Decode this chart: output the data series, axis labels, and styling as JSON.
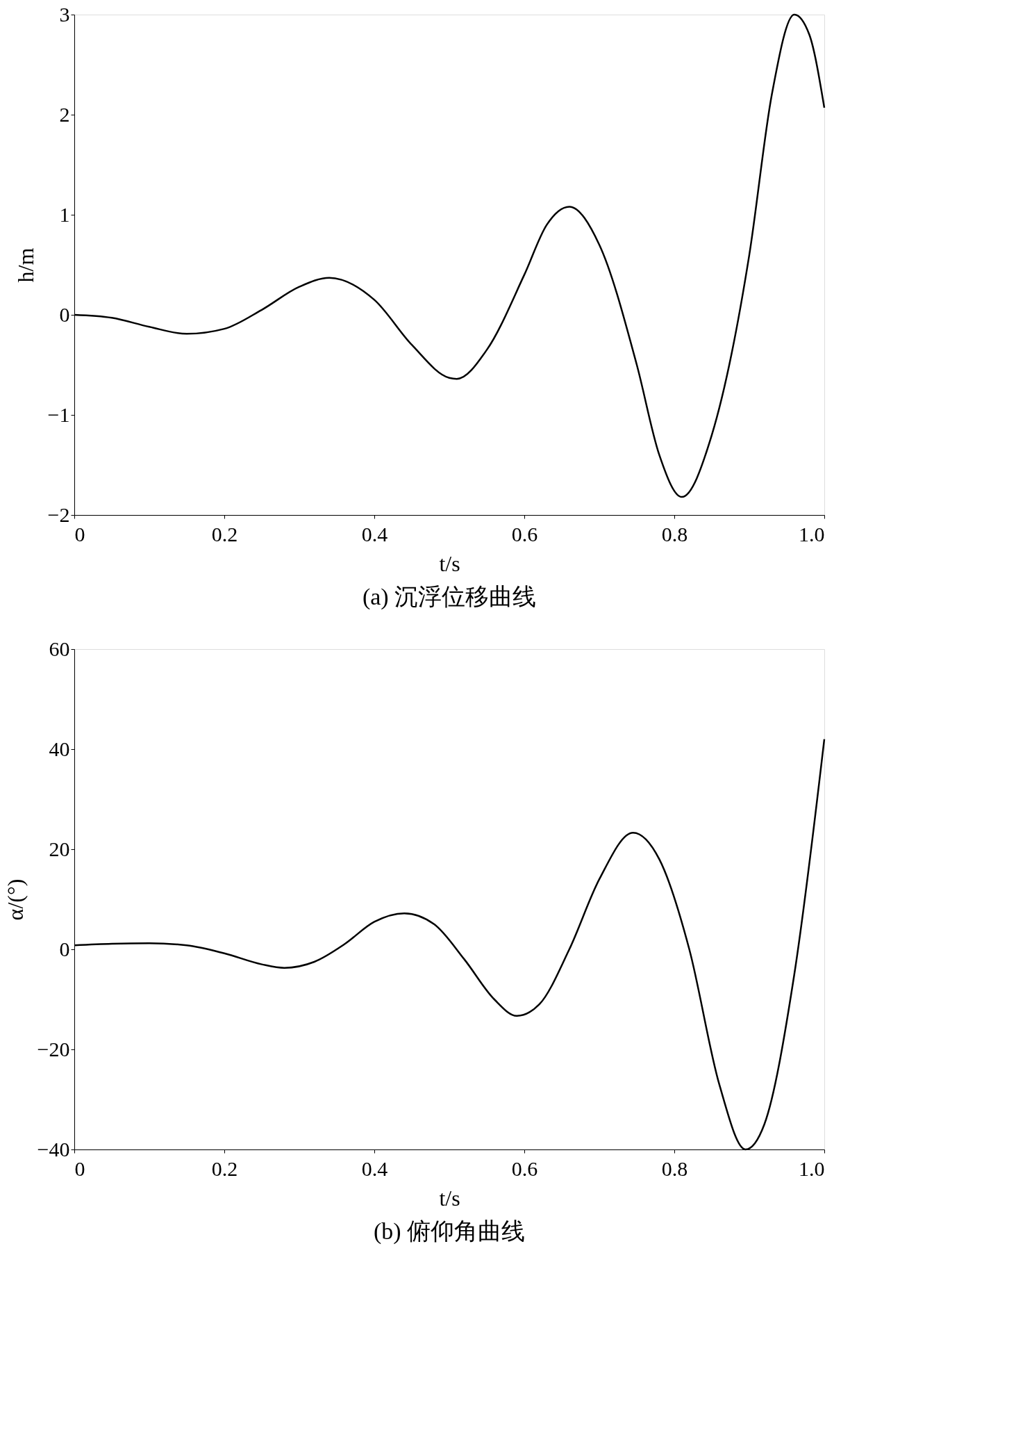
{
  "chart_data": [
    {
      "type": "line",
      "xlabel": "t/s",
      "ylabel": "h/m",
      "annotations": [
        "(a) 沉浮位移曲线"
      ],
      "xlim": [
        0,
        1.0
      ],
      "xticks": [
        0,
        0.2,
        0.4,
        0.6,
        0.8,
        {
          "value": 1.0,
          "label": "1.0"
        }
      ],
      "ylim": [
        -2,
        3
      ],
      "yticks": [
        -2,
        -1,
        0,
        1,
        2,
        3
      ],
      "grid": false,
      "series": [
        {
          "color": "#000000",
          "x": [
            0,
            0.05,
            0.1,
            0.15,
            0.2,
            0.25,
            0.3,
            0.34,
            0.4,
            0.45,
            0.5,
            0.51,
            0.55,
            0.6,
            0.63,
            0.66,
            0.7,
            0.75,
            0.78,
            0.81,
            0.85,
            0.9,
            0.93,
            0.96,
            0.98,
            1.0
          ],
          "values": [
            0,
            -0.03,
            -0.12,
            -0.19,
            -0.14,
            0.05,
            0.28,
            0.37,
            0.15,
            -0.3,
            -0.63,
            -0.64,
            -0.35,
            0.4,
            0.9,
            1.08,
            0.7,
            -0.5,
            -1.4,
            -1.82,
            -1.2,
            0.6,
            2.2,
            3.0,
            2.8,
            2.07
          ]
        }
      ]
    },
    {
      "type": "line",
      "xlabel": "t/s",
      "ylabel": "α/(°)",
      "annotations": [
        "(b) 俯仰角曲线"
      ],
      "xlim": [
        0,
        1.0
      ],
      "xticks": [
        0,
        0.2,
        0.4,
        0.6,
        0.8,
        {
          "value": 1.0,
          "label": "1.0"
        }
      ],
      "ylim": [
        -40,
        60
      ],
      "yticks": [
        -40,
        -20,
        0,
        20,
        40,
        60
      ],
      "grid": false,
      "series": [
        {
          "color": "#000000",
          "x": [
            0,
            0.05,
            0.1,
            0.15,
            0.2,
            0.25,
            0.28,
            0.32,
            0.36,
            0.4,
            0.44,
            0.48,
            0.52,
            0.56,
            0.59,
            0.62,
            0.66,
            0.7,
            0.745,
            0.78,
            0.82,
            0.86,
            0.895,
            0.92,
            0.96,
            1.0
          ],
          "values": [
            0.8,
            1.1,
            1.2,
            0.8,
            -0.8,
            -3,
            -3.7,
            -2.5,
            1,
            5.5,
            7.2,
            5,
            -2,
            -10,
            -13.3,
            -11,
            0,
            14,
            23.3,
            18,
            0,
            -27,
            -40,
            -35,
            -5,
            42
          ]
        }
      ]
    }
  ]
}
